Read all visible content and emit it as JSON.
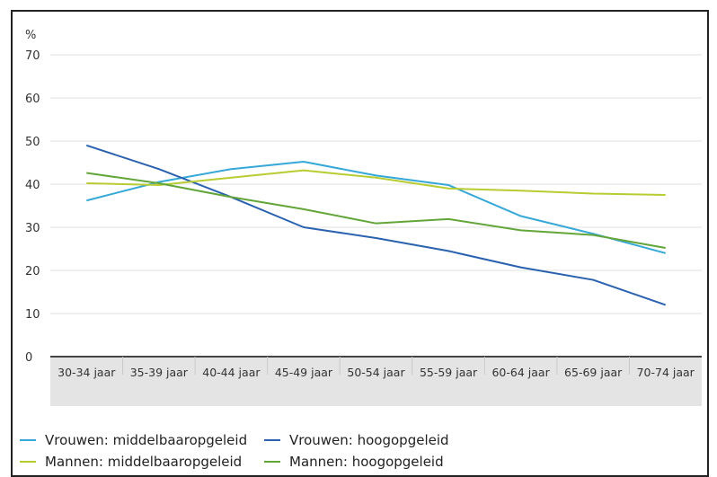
{
  "chart_data": {
    "type": "line",
    "ylabel": "%",
    "ylim": [
      0,
      70
    ],
    "yticks": [
      "0",
      "10",
      "20",
      "30",
      "40",
      "50",
      "60",
      "70"
    ],
    "grid": true,
    "legend_position": "bottom",
    "categories": [
      "30-34 jaar",
      "35-39 jaar",
      "40-44 jaar",
      "45-49 jaar",
      "50-54 jaar",
      "55-59 jaar",
      "60-64 jaar",
      "65-69 jaar",
      "70-74 jaar"
    ],
    "series": [
      {
        "name": "Vrouwen: middelbaaropgeleid",
        "color": "#35a8d8",
        "values": [
          36.2,
          40.5,
          43.5,
          45.2,
          42.0,
          39.8,
          32.6,
          28.5,
          24.0
        ]
      },
      {
        "name": "Vrouwen: hoogopgeleid",
        "color": "#2a62b0",
        "values": [
          49.0,
          43.5,
          37.0,
          30.0,
          27.5,
          24.5,
          20.7,
          17.8,
          12.0
        ]
      },
      {
        "name": "Mannen: middelbaaropgeleid",
        "color": "#b8cc32",
        "values": [
          40.2,
          39.8,
          41.5,
          43.2,
          41.5,
          39.0,
          38.5,
          37.8,
          37.5
        ]
      },
      {
        "name": "Mannen: hoogopgeleid",
        "color": "#62a63a",
        "values": [
          42.6,
          40.2,
          37.0,
          34.2,
          30.9,
          31.9,
          29.3,
          28.2,
          25.2
        ]
      }
    ]
  }
}
